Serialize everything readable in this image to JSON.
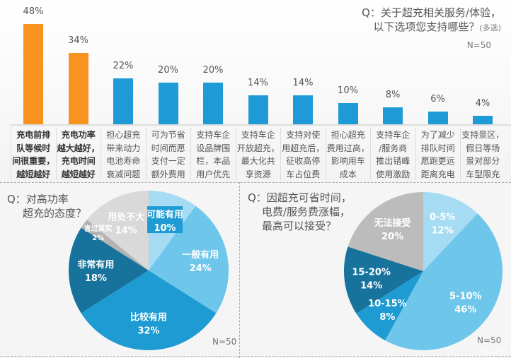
{
  "colors": {
    "highlight": "#f7931e",
    "bar": "#1e9bd7"
  },
  "watermark": "汽车之家",
  "chart_data": [
    {
      "type": "bar",
      "title": "Q：关于超充相关服务/体验，以下选项您支持哪些？",
      "title_line1": "Q：关于超充相关服务/体验，",
      "title_line2": "以下选项您支持哪些？",
      "note": "(多选)",
      "sample": "N=50",
      "unit": "%",
      "ylim": [
        0,
        50
      ],
      "grid": false,
      "categories": [
        "充电前排队等候时间很重要，越短越好",
        "充电功率越大越好，充电时间越短越好",
        "担心超充带来动力电池寿命衰减问题",
        "可为节省时间而愿支付一定额外费用",
        "支持车企设品牌围栏，本品用户优先",
        "支持车企开放超充，最大化共享资源",
        "支持对使用超充后，征收高停车占位费",
        "担心超充费用过高，影响用车成本",
        "支持车企/服务商推出错峰使用激励",
        "为了减少排队时间愿跑更远距离充电",
        "支持景区，假日等场景对部分车型限充"
      ],
      "category_lines": [
        [
          "充电前排",
          "队等候时",
          "间很重要，",
          "越短越好"
        ],
        [
          "充电功率",
          "越大越好，",
          "充电时间",
          "越短越好"
        ],
        [
          "担心超充",
          "带来动力",
          "电池寿命",
          "衰减问题"
        ],
        [
          "可为节省",
          "时间而愿",
          "支付一定",
          "额外费用"
        ],
        [
          "支持车企",
          "设品牌围",
          "栏，本品",
          "用户优先"
        ],
        [
          "支持车企",
          "开放超充，",
          "最大化共",
          "享资源"
        ],
        [
          "支持对使",
          "用超充后，",
          "征收高停",
          "车占位费"
        ],
        [
          "担心超充",
          "费用过高，",
          "影响用车",
          "成本"
        ],
        [
          "支持车企",
          "/服务商",
          "推出错峰",
          "使用激励"
        ],
        [
          "为了减少",
          "排队时间",
          "愿跑更远",
          "距离充电"
        ],
        [
          "支持景区，",
          "假日等场",
          "景对部分",
          "车型限充"
        ]
      ],
      "values": [
        48,
        34,
        22,
        20,
        20,
        14,
        14,
        10,
        8,
        6,
        4
      ],
      "highlighted": [
        true,
        true,
        false,
        false,
        false,
        false,
        false,
        false,
        false,
        false,
        false
      ]
    },
    {
      "type": "pie",
      "title_line1": "Q：对高功率",
      "title_line2": "超充的态度？",
      "sample": "N=50",
      "slices": [
        {
          "label": "可能有用",
          "value": 10,
          "color": "#a6dcf3"
        },
        {
          "label": "一般有用",
          "value": 24,
          "color": "#6ec6ea"
        },
        {
          "label": "比较有用",
          "value": 32,
          "color": "#1e9bd3"
        },
        {
          "label": "非常有用",
          "value": 18,
          "color": "#17729c"
        },
        {
          "label": "言过其实",
          "value": 2,
          "color": "#b3b3b3"
        },
        {
          "label": "用处不大",
          "value": 14,
          "color": "#d9d9d9"
        }
      ]
    },
    {
      "type": "pie",
      "title_line1": "Q：因超充可省时间，",
      "title_line2": "电费/服务费涨幅，",
      "title_line3": "最高可以接受？",
      "sample": "N=50",
      "slices": [
        {
          "label": "0-5%",
          "value": 12,
          "color": "#a6dcf3"
        },
        {
          "label": "5-10%",
          "value": 46,
          "color": "#6ec6ea"
        },
        {
          "label": "10-15%",
          "value": 8,
          "color": "#1e9bd3"
        },
        {
          "label": "15-20%",
          "value": 14,
          "color": "#17729c"
        },
        {
          "label": "无法接受",
          "value": 20,
          "color": "#bcbcbc"
        }
      ]
    }
  ]
}
